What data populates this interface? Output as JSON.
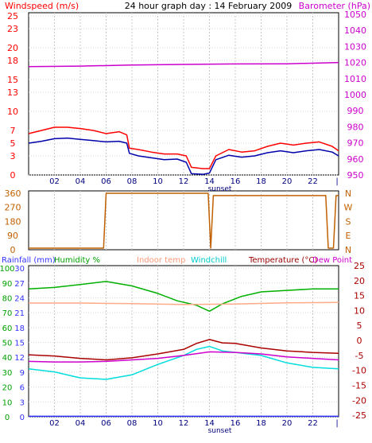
{
  "header": {
    "title": "24 hour graph day : 14 February 2009",
    "windspeed_label": "Windspeed (m/s)",
    "barometer_label": "Barometer (hPa)",
    "rain_label": "Rainfall (mm)",
    "humidity_label": "Humidity %",
    "indoor_label": "Indoor temp",
    "windchill_label": "Windchill",
    "temperature_label": "Temperature (°C)",
    "dewpoint_label": "Dew Point"
  },
  "colors": {
    "wind_gust": "#ff0000",
    "wind_avg": "#0000aa",
    "barometer": "#cc00cc",
    "direction": "#c06000",
    "humidity": "#00b000",
    "indoor": "#ffaa88",
    "windchill": "#00dddd",
    "temperature": "#aa0000",
    "dewpoint": "#cc00cc",
    "rainfall": "#3333ff",
    "grid_time": "#c8c8c8"
  },
  "chart_data": [
    {
      "type": "line",
      "title": "24 hour graph day : 14 February 2009",
      "x_tick_labels": [
        "02",
        "04",
        "06",
        "08",
        "10",
        "12",
        "14",
        "16",
        "18",
        "20",
        "22",
        "|"
      ],
      "sunset_label": "sunset",
      "y_left_label": "Windspeed (m/s)",
      "y_left_ticks": [
        "0",
        "3",
        "5",
        "7",
        "10",
        "13",
        "15",
        "18",
        "20",
        "23",
        "25"
      ],
      "y_left_range": [
        0,
        25.5
      ],
      "y_right_label": "Barometer (hPa)",
      "y_right_ticks": [
        "950",
        "960",
        "970",
        "980",
        "990",
        "1000",
        "1010",
        "1020",
        "1030",
        "1040",
        "1050"
      ],
      "y_right_range": [
        950,
        1051
      ],
      "x_range_hours": [
        0,
        24
      ],
      "series": [
        {
          "key": "gust",
          "name": "Windspeed (m/s)",
          "points": [
            [
              0,
              6.5
            ],
            [
              1,
              7.0
            ],
            [
              2,
              7.5
            ],
            [
              3,
              7.5
            ],
            [
              4,
              7.3
            ],
            [
              5,
              7.0
            ],
            [
              6,
              6.5
            ],
            [
              7,
              6.8
            ],
            [
              7.6,
              6.3
            ],
            [
              7.8,
              4.2
            ],
            [
              8.5,
              4.0
            ],
            [
              9.5,
              3.6
            ],
            [
              10.5,
              3.3
            ],
            [
              11.5,
              3.3
            ],
            [
              12.2,
              3.0
            ],
            [
              12.6,
              1.2
            ],
            [
              13.5,
              1.0
            ],
            [
              14,
              1.0
            ],
            [
              14.5,
              3.0
            ],
            [
              15.5,
              4.0
            ],
            [
              16.5,
              3.6
            ],
            [
              17.5,
              3.8
            ],
            [
              18.5,
              4.5
            ],
            [
              19.5,
              5.0
            ],
            [
              20.5,
              4.7
            ],
            [
              21.5,
              5.0
            ],
            [
              22.5,
              5.2
            ],
            [
              23.5,
              4.5
            ],
            [
              24,
              3.8
            ]
          ]
        },
        {
          "key": "avg",
          "name": "",
          "points": [
            [
              0,
              5.0
            ],
            [
              1,
              5.3
            ],
            [
              2,
              5.7
            ],
            [
              3,
              5.8
            ],
            [
              4,
              5.6
            ],
            [
              5,
              5.4
            ],
            [
              6,
              5.2
            ],
            [
              7,
              5.3
            ],
            [
              7.6,
              5.0
            ],
            [
              7.8,
              3.4
            ],
            [
              8.5,
              3.0
            ],
            [
              9.5,
              2.7
            ],
            [
              10.5,
              2.4
            ],
            [
              11.5,
              2.5
            ],
            [
              12.2,
              2.0
            ],
            [
              12.6,
              0.2
            ],
            [
              13.5,
              0.1
            ],
            [
              14,
              0.3
            ],
            [
              14.5,
              2.4
            ],
            [
              15.5,
              3.1
            ],
            [
              16.5,
              2.8
            ],
            [
              17.5,
              3.0
            ],
            [
              18.5,
              3.5
            ],
            [
              19.5,
              3.8
            ],
            [
              20.5,
              3.5
            ],
            [
              21.5,
              3.8
            ],
            [
              22.5,
              4.0
            ],
            [
              23.5,
              3.6
            ],
            [
              24,
              3.0
            ]
          ]
        },
        {
          "key": "baro",
          "name": "Barometer (hPa)",
          "axis": "right",
          "points": [
            [
              0,
              1017.5
            ],
            [
              4,
              1017.8
            ],
            [
              8,
              1018.4
            ],
            [
              12,
              1018.8
            ],
            [
              16,
              1019.1
            ],
            [
              20,
              1019.2
            ],
            [
              24,
              1020.0
            ]
          ]
        }
      ]
    },
    {
      "type": "line",
      "y_left_ticks": [
        "0",
        "90",
        "180",
        "270",
        "360"
      ],
      "y_left_range": [
        0,
        375
      ],
      "y_right_ticks": [
        "N",
        "W",
        "S",
        "E",
        "N"
      ],
      "series": [
        {
          "key": "dir",
          "name": "",
          "points": [
            [
              0,
              10
            ],
            [
              5.8,
              10
            ],
            [
              6,
              360
            ],
            [
              13.9,
              360
            ],
            [
              14.1,
              10
            ],
            [
              14.3,
              345
            ],
            [
              23,
              345
            ],
            [
              23.2,
              10
            ],
            [
              23.6,
              10
            ],
            [
              23.8,
              345
            ],
            [
              24,
              345
            ]
          ]
        }
      ]
    },
    {
      "type": "line",
      "x_tick_labels": [
        "02",
        "04",
        "06",
        "08",
        "10",
        "12",
        "14",
        "16",
        "18",
        "20",
        "22",
        "|"
      ],
      "sunset_label": "sunset",
      "y_left_ticks": [
        "0",
        "3",
        "6",
        "9",
        "12",
        "15",
        "18",
        "21",
        "24",
        "27",
        "30"
      ],
      "y_left2_ticks": [
        "0",
        "10",
        "20",
        "30",
        "40",
        "50",
        "60",
        "70",
        "80",
        "90",
        "100"
      ],
      "y_left_range": [
        0,
        30.5
      ],
      "y_right_ticks": [
        "25",
        "20",
        "15",
        "10",
        "5",
        "0",
        "-5",
        "-10",
        "-15",
        "-20",
        "-25"
      ],
      "y_right_range": [
        -25.5,
        25
      ],
      "series": [
        {
          "key": "hum",
          "name": "Humidity %",
          "axis": "humidity",
          "points": [
            [
              0,
              86
            ],
            [
              2,
              87
            ],
            [
              4,
              89
            ],
            [
              6,
              91
            ],
            [
              8,
              88
            ],
            [
              10,
              83
            ],
            [
              11.5,
              78
            ],
            [
              13,
              75
            ],
            [
              14,
              71
            ],
            [
              15,
              76
            ],
            [
              16.5,
              81
            ],
            [
              18,
              84
            ],
            [
              20,
              85
            ],
            [
              22,
              86
            ],
            [
              24,
              86
            ]
          ]
        },
        {
          "key": "indoor",
          "name": "Indoor temp",
          "axis": "temp",
          "points": [
            [
              0,
              12.5
            ],
            [
              4,
              12.5
            ],
            [
              8,
              12.3
            ],
            [
              12,
              12.0
            ],
            [
              16,
              12.2
            ],
            [
              20,
              12.6
            ],
            [
              24,
              12.7
            ]
          ]
        },
        {
          "key": "wchill",
          "name": "Windchill",
          "axis": "temp",
          "points": [
            [
              0,
              -9.5
            ],
            [
              2,
              -10.5
            ],
            [
              4,
              -12.5
            ],
            [
              6,
              -13.0
            ],
            [
              8,
              -11.5
            ],
            [
              10,
              -8.0
            ],
            [
              12,
              -5.0
            ],
            [
              13,
              -3.0
            ],
            [
              14,
              -2.0
            ],
            [
              15,
              -3.5
            ],
            [
              16,
              -4.0
            ],
            [
              18,
              -5.0
            ],
            [
              20,
              -7.5
            ],
            [
              22,
              -9.0
            ],
            [
              24,
              -9.5
            ]
          ]
        },
        {
          "key": "temp",
          "name": "Temperature (°C)",
          "axis": "temp",
          "points": [
            [
              0,
              -4.8
            ],
            [
              2,
              -5.2
            ],
            [
              4,
              -6.0
            ],
            [
              6,
              -6.5
            ],
            [
              8,
              -5.8
            ],
            [
              10,
              -4.5
            ],
            [
              12,
              -3.0
            ],
            [
              13,
              -1.0
            ],
            [
              14,
              0.3
            ],
            [
              15,
              -0.8
            ],
            [
              16,
              -1.0
            ],
            [
              18,
              -2.5
            ],
            [
              20,
              -3.5
            ],
            [
              22,
              -4.0
            ],
            [
              24,
              -4.3
            ]
          ]
        },
        {
          "key": "dew",
          "name": "Dew Point",
          "axis": "temp",
          "points": [
            [
              0,
              -7.0
            ],
            [
              2,
              -7.2
            ],
            [
              4,
              -7.2
            ],
            [
              6,
              -7.0
            ],
            [
              8,
              -6.5
            ],
            [
              10,
              -6.0
            ],
            [
              12,
              -5.0
            ],
            [
              14,
              -3.8
            ],
            [
              16,
              -4.0
            ],
            [
              18,
              -4.5
            ],
            [
              20,
              -5.5
            ],
            [
              22,
              -6.0
            ],
            [
              24,
              -6.5
            ]
          ]
        },
        {
          "key": "rain",
          "name": "Rainfall (mm)",
          "axis": "rain",
          "points": [
            [
              0,
              0.1
            ],
            [
              24,
              0.1
            ]
          ]
        }
      ]
    }
  ]
}
